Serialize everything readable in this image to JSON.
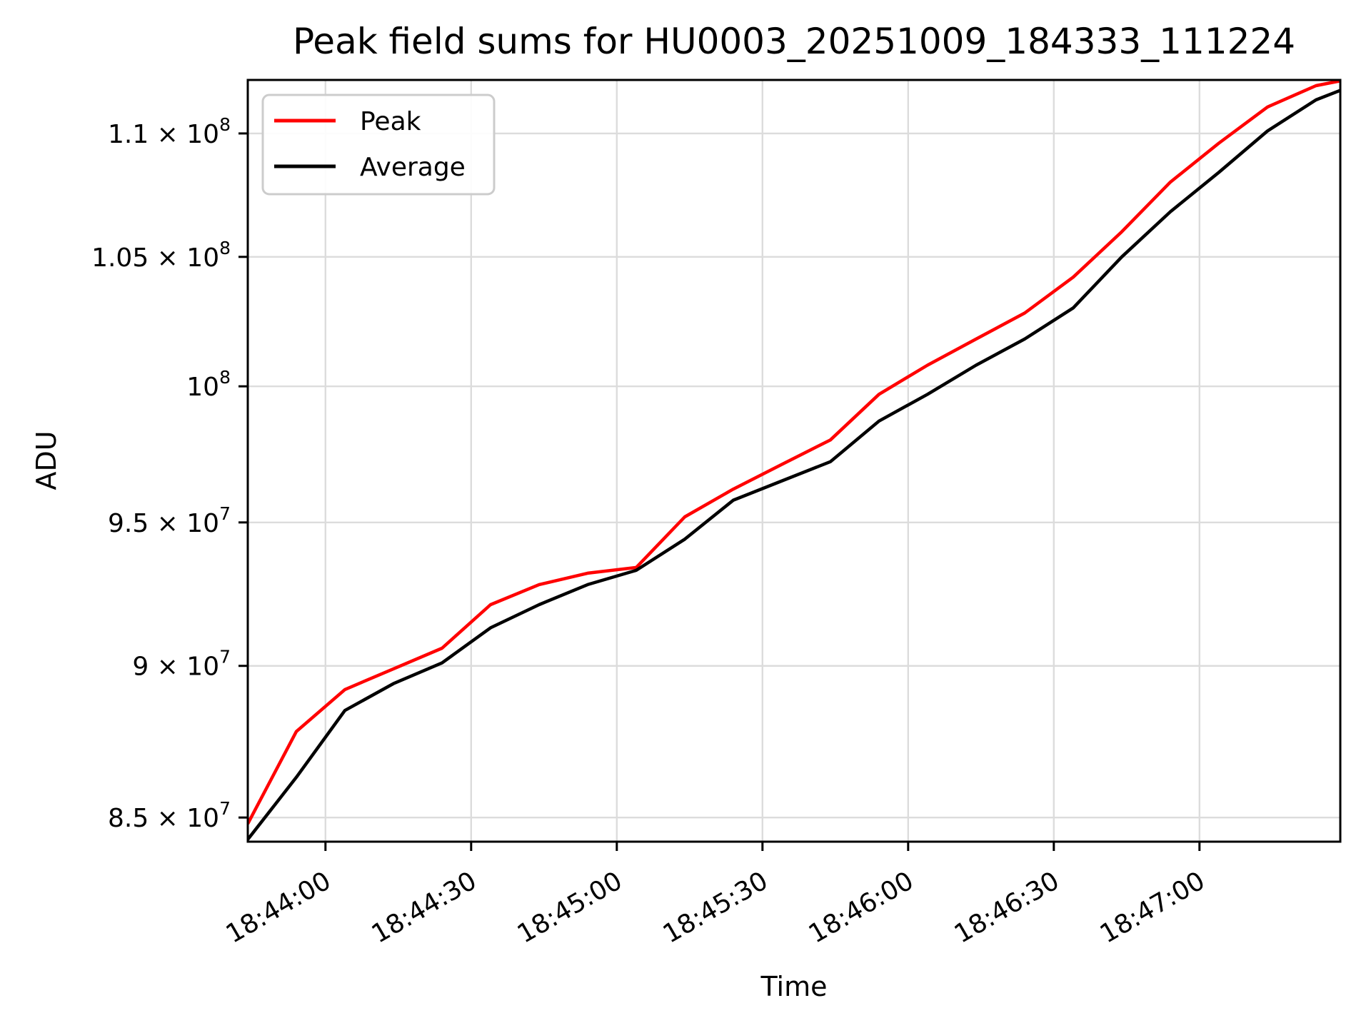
{
  "chart_data": {
    "type": "line",
    "title": "Peak field sums for HU0003_20251009_184333_111224",
    "xlabel": "Time",
    "ylabel": "ADU",
    "yscale": "log",
    "grid": true,
    "grid_color": "#dcdcdc",
    "background_color": "#ffffff",
    "spine_color": "#000000",
    "legend_position": "upper left",
    "xlim": [
      "18:43:44",
      "18:47:29"
    ],
    "ylim": [
      84230000,
      112240000
    ],
    "x_ticks": [
      "18:44:00",
      "18:44:30",
      "18:45:00",
      "18:45:30",
      "18:46:00",
      "18:46:30",
      "18:47:00"
    ],
    "y_ticks": [
      {
        "value": 110000000,
        "mantissa": "1.1 × 10",
        "exponent": "8"
      },
      {
        "value": 105000000,
        "mantissa": "1.05 × 10",
        "exponent": "8"
      },
      {
        "value": 100000000,
        "mantissa": "10",
        "exponent": "8"
      },
      {
        "value": 95000000,
        "mantissa": "9.5 × 10",
        "exponent": "7"
      },
      {
        "value": 90000000,
        "mantissa": "9 × 10",
        "exponent": "7"
      },
      {
        "value": 85000000,
        "mantissa": "8.5 × 10",
        "exponent": "7"
      }
    ],
    "x": [
      "18:43:44",
      "18:43:54",
      "18:44:04",
      "18:44:14",
      "18:44:24",
      "18:44:34",
      "18:44:44",
      "18:44:54",
      "18:45:04",
      "18:45:14",
      "18:45:24",
      "18:45:34",
      "18:45:44",
      "18:45:54",
      "18:46:04",
      "18:46:14",
      "18:46:24",
      "18:46:34",
      "18:46:44",
      "18:46:54",
      "18:47:04",
      "18:47:14",
      "18:47:24",
      "18:47:29"
    ],
    "series": [
      {
        "name": "Peak",
        "color": "#ff0000",
        "values": [
          84800000,
          87800000,
          89200000,
          89900000,
          90600000,
          92100000,
          92800000,
          93200000,
          93400000,
          95200000,
          96200000,
          97100000,
          98000000,
          99700000,
          100800000,
          101800000,
          102800000,
          104200000,
          106000000,
          108000000,
          109600000,
          111100000,
          112000000,
          112200000
        ]
      },
      {
        "name": "Average",
        "color": "#000000",
        "values": [
          84300000,
          86300000,
          88500000,
          89400000,
          90100000,
          91300000,
          92100000,
          92800000,
          93300000,
          94400000,
          95800000,
          96500000,
          97200000,
          98700000,
          99700000,
          100800000,
          101800000,
          103000000,
          105000000,
          106800000,
          108400000,
          110100000,
          111400000,
          111800000
        ]
      }
    ]
  }
}
